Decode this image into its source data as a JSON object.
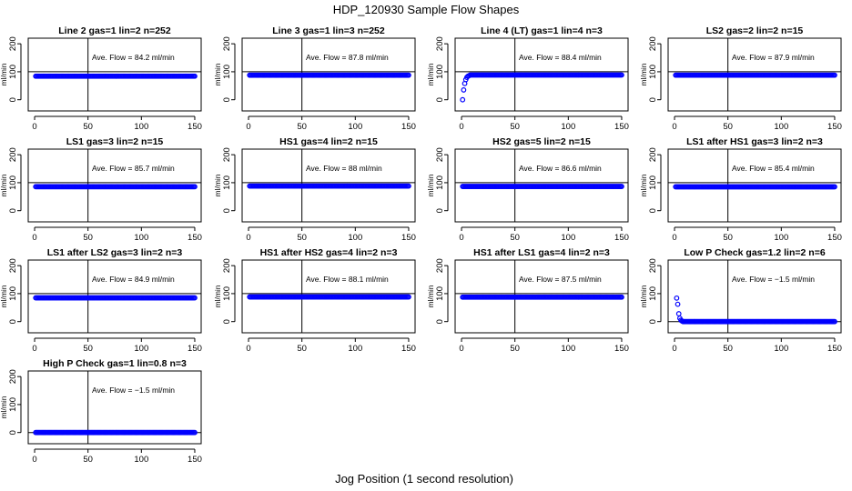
{
  "figure": {
    "title": "HDP_120930  Sample Flow Shapes",
    "xlabel": "Jog Position (1 second resolution)"
  },
  "chart_data": [
    {
      "type": "scatter",
      "title": "Line 2 gas=1 lin=2 n=252",
      "ylabel": "ml/min",
      "annotation": "Ave. Flow =  84.2  ml/min",
      "xlim": [
        0,
        150
      ],
      "ylim": [
        0,
        200
      ],
      "xticks": [
        0,
        50,
        100,
        150
      ],
      "yticks": [
        0,
        100,
        200
      ],
      "vline": 50,
      "hline": 100,
      "series": [
        {
          "shape": "flat",
          "start": 1,
          "end": 150,
          "level": 84.2
        }
      ]
    },
    {
      "type": "scatter",
      "title": "Line 3 gas=1 lin=3 n=252",
      "ylabel": "ml/min",
      "annotation": "Ave. Flow =  87.8  ml/min",
      "xlim": [
        0,
        150
      ],
      "ylim": [
        0,
        200
      ],
      "xticks": [
        0,
        50,
        100,
        150
      ],
      "yticks": [
        0,
        100,
        200
      ],
      "vline": 50,
      "hline": 100,
      "series": [
        {
          "shape": "flat",
          "start": 1,
          "end": 150,
          "level": 87.8
        }
      ]
    },
    {
      "type": "scatter",
      "title": "Line 4 (LT) gas=1 lin=4 n=3",
      "ylabel": "ml/min",
      "annotation": "Ave. Flow =  88.4  ml/min",
      "xlim": [
        0,
        150
      ],
      "ylim": [
        0,
        200
      ],
      "xticks": [
        0,
        50,
        100,
        150
      ],
      "yticks": [
        0,
        100,
        200
      ],
      "vline": 50,
      "hline": 100,
      "series": [
        {
          "shape": "rise",
          "start": 1,
          "end": 150,
          "level": 88.4,
          "initial": [
            [
              1,
              0
            ],
            [
              2,
              35
            ],
            [
              3,
              58
            ],
            [
              4,
              72
            ],
            [
              5,
              80
            ],
            [
              6,
              84
            ],
            [
              7,
              86
            ]
          ]
        }
      ]
    },
    {
      "type": "scatter",
      "title": "LS2 gas=2 lin=2 n=15",
      "ylabel": "ml/min",
      "annotation": "Ave. Flow =  87.9  ml/min",
      "xlim": [
        0,
        150
      ],
      "ylim": [
        0,
        200
      ],
      "xticks": [
        0,
        50,
        100,
        150
      ],
      "yticks": [
        0,
        100,
        200
      ],
      "vline": 50,
      "hline": 100,
      "series": [
        {
          "shape": "flat",
          "start": 1,
          "end": 150,
          "level": 87.9
        }
      ]
    },
    {
      "type": "scatter",
      "title": "LS1 gas=3 lin=2 n=15",
      "ylabel": "ml/min",
      "annotation": "Ave. Flow =  85.7  ml/min",
      "xlim": [
        0,
        150
      ],
      "ylim": [
        0,
        200
      ],
      "xticks": [
        0,
        50,
        100,
        150
      ],
      "yticks": [
        0,
        100,
        200
      ],
      "vline": 50,
      "hline": 100,
      "series": [
        {
          "shape": "flat",
          "start": 1,
          "end": 150,
          "level": 85.7
        }
      ]
    },
    {
      "type": "scatter",
      "title": "HS1 gas=4 lin=2 n=15",
      "ylabel": "ml/min",
      "annotation": "Ave. Flow =  88  ml/min",
      "xlim": [
        0,
        150
      ],
      "ylim": [
        0,
        200
      ],
      "xticks": [
        0,
        50,
        100,
        150
      ],
      "yticks": [
        0,
        100,
        200
      ],
      "vline": 50,
      "hline": 100,
      "series": [
        {
          "shape": "flat",
          "start": 1,
          "end": 150,
          "level": 88
        }
      ]
    },
    {
      "type": "scatter",
      "title": "HS2 gas=5 lin=2 n=15",
      "ylabel": "ml/min",
      "annotation": "Ave. Flow =  86.6  ml/min",
      "xlim": [
        0,
        150
      ],
      "ylim": [
        0,
        200
      ],
      "xticks": [
        0,
        50,
        100,
        150
      ],
      "yticks": [
        0,
        100,
        200
      ],
      "vline": 50,
      "hline": 100,
      "series": [
        {
          "shape": "flat",
          "start": 1,
          "end": 150,
          "level": 86.6
        }
      ]
    },
    {
      "type": "scatter",
      "title": "LS1 after HS1 gas=3 lin=2 n=3",
      "ylabel": "ml/min",
      "annotation": "Ave. Flow =  85.4  ml/min",
      "xlim": [
        0,
        150
      ],
      "ylim": [
        0,
        200
      ],
      "xticks": [
        0,
        50,
        100,
        150
      ],
      "yticks": [
        0,
        100,
        200
      ],
      "vline": 50,
      "hline": 100,
      "series": [
        {
          "shape": "flat",
          "start": 1,
          "end": 150,
          "level": 85.4
        }
      ]
    },
    {
      "type": "scatter",
      "title": "LS1 after LS2 gas=3 lin=2 n=3",
      "ylabel": "ml/min",
      "annotation": "Ave. Flow =  84.9  ml/min",
      "xlim": [
        0,
        150
      ],
      "ylim": [
        0,
        200
      ],
      "xticks": [
        0,
        50,
        100,
        150
      ],
      "yticks": [
        0,
        100,
        200
      ],
      "vline": 50,
      "hline": 100,
      "series": [
        {
          "shape": "flat",
          "start": 1,
          "end": 150,
          "level": 84.9
        }
      ]
    },
    {
      "type": "scatter",
      "title": "HS1 after HS2 gas=4 lin=2 n=3",
      "ylabel": "ml/min",
      "annotation": "Ave. Flow =  88.1  ml/min",
      "xlim": [
        0,
        150
      ],
      "ylim": [
        0,
        200
      ],
      "xticks": [
        0,
        50,
        100,
        150
      ],
      "yticks": [
        0,
        100,
        200
      ],
      "vline": 50,
      "hline": 100,
      "series": [
        {
          "shape": "flat",
          "start": 1,
          "end": 150,
          "level": 88.1
        }
      ]
    },
    {
      "type": "scatter",
      "title": "HS1 after LS1 gas=4 lin=2 n=3",
      "ylabel": "ml/min",
      "annotation": "Ave. Flow =  87.5  ml/min",
      "xlim": [
        0,
        150
      ],
      "ylim": [
        0,
        200
      ],
      "xticks": [
        0,
        50,
        100,
        150
      ],
      "yticks": [
        0,
        100,
        200
      ],
      "vline": 50,
      "hline": 100,
      "series": [
        {
          "shape": "flat",
          "start": 1,
          "end": 150,
          "level": 87.5
        }
      ]
    },
    {
      "type": "scatter",
      "title": "Low P Check gas=1.2 lin=2 n=6",
      "ylabel": "ml/min",
      "annotation": "Ave. Flow =  −1.5  ml/min",
      "xlim": [
        0,
        150
      ],
      "ylim": [
        0,
        200
      ],
      "xticks": [
        0,
        50,
        100,
        150
      ],
      "yticks": [
        0,
        100,
        200
      ],
      "vline": 50,
      "hline": 0,
      "series": [
        {
          "shape": "decay",
          "start": 1,
          "end": 150,
          "level": 0,
          "initial": [
            [
              2,
              84
            ],
            [
              3,
              62
            ],
            [
              4,
              28
            ],
            [
              5,
              12
            ],
            [
              6,
              5
            ],
            [
              7,
              2
            ]
          ]
        }
      ]
    },
    {
      "type": "scatter",
      "title": "High P Check gas=1 lin=0.8 n=3",
      "ylabel": "ml/min",
      "annotation": "Ave. Flow =  −1.5  ml/min",
      "xlim": [
        0,
        150
      ],
      "ylim": [
        0,
        200
      ],
      "xticks": [
        0,
        50,
        100,
        150
      ],
      "yticks": [
        0,
        100,
        200
      ],
      "vline": 50,
      "hline": 0,
      "series": [
        {
          "shape": "flat",
          "start": 1,
          "end": 150,
          "level": 0
        }
      ]
    }
  ]
}
